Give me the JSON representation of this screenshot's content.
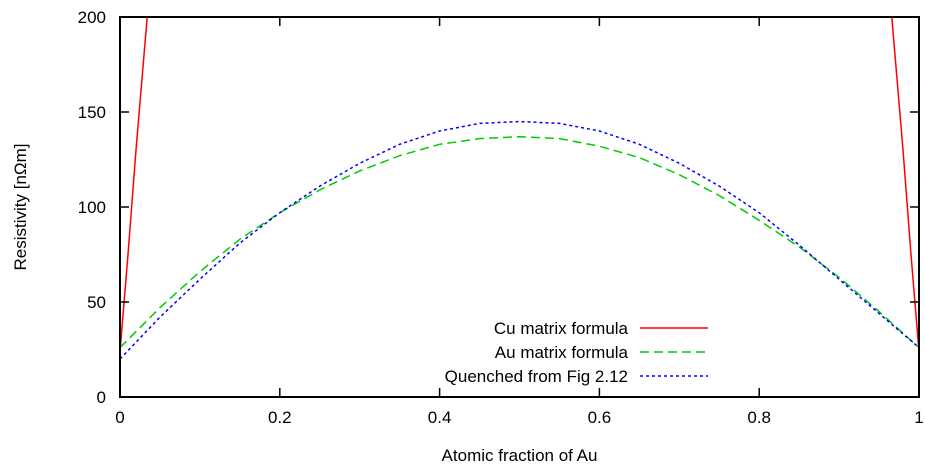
{
  "chart_data": {
    "type": "line",
    "title": "",
    "xlabel": "Atomic fraction of Au",
    "ylabel": "Resistivity [nΩm]",
    "xlim": [
      0,
      1
    ],
    "ylim": [
      0,
      200
    ],
    "x_ticks": [
      0,
      0.2,
      0.4,
      0.6,
      0.8,
      1
    ],
    "x_tick_labels": [
      "0",
      "0.2",
      "0.4",
      "0.6",
      "0.8",
      "1"
    ],
    "y_ticks": [
      0,
      50,
      100,
      150,
      200
    ],
    "y_tick_labels": [
      "0",
      "50",
      "100",
      "150",
      "200"
    ],
    "grid": false,
    "legend_position": "bottom-center",
    "series": [
      {
        "name": "Cu matrix formula",
        "color": "#ff0000",
        "dash": "solid",
        "x": [
          0.0,
          0.01,
          0.02,
          0.034,
          0.966,
          0.98,
          0.99,
          1.0
        ],
        "y": [
          24,
          75,
          130,
          200,
          200,
          130,
          75,
          24
        ]
      },
      {
        "name": "Au matrix formula",
        "color": "#00cc00",
        "dash": "dashed",
        "x": [
          0.0,
          0.05,
          0.1,
          0.15,
          0.2,
          0.25,
          0.3,
          0.35,
          0.4,
          0.45,
          0.5,
          0.55,
          0.6,
          0.65,
          0.7,
          0.75,
          0.8,
          0.85,
          0.9,
          0.95,
          1.0
        ],
        "y": [
          26,
          47,
          66,
          83,
          97,
          109,
          119,
          127,
          133,
          136,
          137,
          136,
          132,
          126,
          117,
          106,
          93,
          79,
          63,
          45,
          26
        ]
      },
      {
        "name": "Quenched from Fig 2.12",
        "color": "#0000ff",
        "dash": "dotted",
        "x": [
          0.0,
          0.05,
          0.1,
          0.15,
          0.2,
          0.25,
          0.3,
          0.35,
          0.4,
          0.45,
          0.5,
          0.55,
          0.6,
          0.65,
          0.7,
          0.75,
          0.8,
          0.85,
          0.9,
          0.95,
          1.0
        ],
        "y": [
          20,
          42,
          62,
          81,
          97,
          111,
          123,
          133,
          140,
          144,
          145,
          144,
          140,
          133,
          123,
          111,
          97,
          80,
          62,
          44,
          26
        ]
      }
    ]
  }
}
